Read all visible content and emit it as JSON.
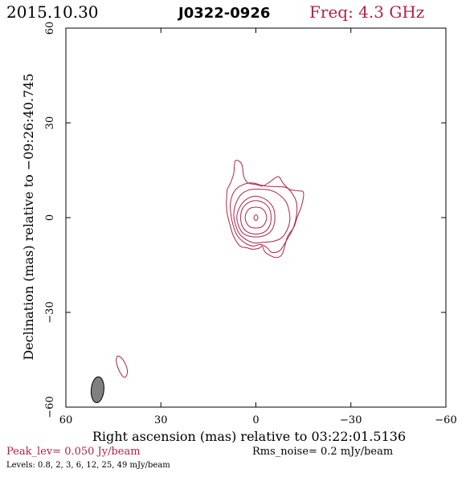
{
  "header": {
    "date": "2015.10.30",
    "source": "J0322-0926",
    "freq": "Freq: 4.3 GHz"
  },
  "footer": {
    "peak": "Peak_lev=  0.050 Jy/beam",
    "rms": "Rms_noise=  0.2 mJy/beam",
    "levels": "Levels: 0.8,   2,   3,   6,   12,   25,   49 mJy/beam"
  },
  "colors": {
    "contour": "#b0224a",
    "axis": "#000000",
    "beam_fill": "#808080",
    "peak_text": "#b0224a",
    "freq_text": "#b0224a"
  },
  "chart_data": {
    "type": "contour",
    "xlabel": "Right ascension (mas) relative to 03:22:01.5136",
    "ylabel": "Declination (mas) relative to −09:26:40.745",
    "xlim": [
      60,
      -60
    ],
    "ylim": [
      -60,
      60
    ],
    "x_ticks": [
      {
        "value": 60,
        "label": "60"
      },
      {
        "value": 30,
        "label": "30"
      },
      {
        "value": 0,
        "label": "0"
      },
      {
        "value": -30,
        "label": "−30"
      },
      {
        "value": -60,
        "label": "−60"
      }
    ],
    "y_ticks": [
      {
        "value": -60,
        "label": "−60"
      },
      {
        "value": -30,
        "label": "−30"
      },
      {
        "value": 0,
        "label": "0"
      },
      {
        "value": 30,
        "label": "30"
      },
      {
        "value": 60,
        "label": "60"
      }
    ],
    "levels_mJy_per_beam": [
      0.8,
      2,
      3,
      6,
      12,
      25,
      49
    ],
    "contours": [
      {
        "level": 0.8,
        "points": [
          [
            6.5,
            18
          ],
          [
            4.5,
            17
          ],
          [
            3.8,
            13
          ],
          [
            2.5,
            11
          ],
          [
            0,
            10.5
          ],
          [
            -2,
            10
          ],
          [
            -4,
            11
          ],
          [
            -7,
            13
          ],
          [
            -8.5,
            11
          ],
          [
            -10.5,
            9
          ],
          [
            -13,
            8.5
          ],
          [
            -15,
            8
          ],
          [
            -14.5,
            4
          ],
          [
            -13,
            0
          ],
          [
            -12,
            -3
          ],
          [
            -10,
            -6
          ],
          [
            -9,
            -9.5
          ],
          [
            -8,
            -12
          ],
          [
            -6,
            -12.6
          ],
          [
            -3,
            -11
          ],
          [
            -2,
            -9
          ],
          [
            -1,
            -9.7
          ],
          [
            1,
            -10
          ],
          [
            3,
            -9.5
          ],
          [
            5,
            -9
          ],
          [
            7,
            -6
          ],
          [
            8,
            -3
          ],
          [
            9,
            1
          ],
          [
            9.3,
            4
          ],
          [
            9.2,
            7
          ],
          [
            9,
            9
          ],
          [
            8,
            11
          ],
          [
            7,
            14
          ]
        ]
      },
      {
        "level": 2,
        "points": [
          [
            1.5,
            11
          ],
          [
            -3,
            10
          ],
          [
            -7,
            9.8
          ],
          [
            -10,
            9.3
          ],
          [
            -12.4,
            6
          ],
          [
            -13,
            3
          ],
          [
            -12.5,
            -1
          ],
          [
            -11.5,
            -4
          ],
          [
            -9.5,
            -7.5
          ],
          [
            -7.5,
            -10.5
          ],
          [
            -5,
            -11
          ],
          [
            -3.5,
            -9.5
          ],
          [
            -1.5,
            -8.5
          ],
          [
            1,
            -9
          ],
          [
            3.5,
            -8
          ],
          [
            6,
            -5.5
          ],
          [
            7.3,
            -2
          ],
          [
            8,
            2
          ],
          [
            8,
            5
          ],
          [
            7,
            8
          ],
          [
            5,
            10
          ]
        ]
      },
      {
        "level": 3,
        "points": [
          [
            0,
            9
          ],
          [
            -4,
            8.8
          ],
          [
            -7,
            7.5
          ],
          [
            -9.5,
            5
          ],
          [
            -10.5,
            2
          ],
          [
            -10.7,
            -1
          ],
          [
            -9.8,
            -4
          ],
          [
            -8,
            -6.5
          ],
          [
            -5.5,
            -7.5
          ],
          [
            -2.5,
            -7.8
          ],
          [
            0.5,
            -8
          ],
          [
            3,
            -7
          ],
          [
            5.3,
            -5
          ],
          [
            6.5,
            -2
          ],
          [
            7,
            1
          ],
          [
            6.3,
            4.5
          ],
          [
            4.5,
            7.5
          ],
          [
            2,
            8.8
          ]
        ]
      },
      {
        "level": 6,
        "points": [
          [
            0,
            6.8
          ],
          [
            3,
            5.8
          ],
          [
            5,
            3.5
          ],
          [
            6,
            0.5
          ],
          [
            5.5,
            -2.5
          ],
          [
            4,
            -5
          ],
          [
            1.5,
            -6
          ],
          [
            -1.5,
            -6
          ],
          [
            -4,
            -5
          ],
          [
            -5.5,
            -3
          ],
          [
            -6,
            0
          ],
          [
            -5.5,
            3
          ],
          [
            -3.5,
            5.5
          ]
        ]
      },
      {
        "level": 12,
        "points": [
          [
            0,
            5.4
          ],
          [
            2.6,
            4.6
          ],
          [
            4.3,
            2.7
          ],
          [
            4.8,
            0
          ],
          [
            4.3,
            -2.7
          ],
          [
            2.6,
            -4.6
          ],
          [
            0,
            -5.2
          ],
          [
            -2.6,
            -4.6
          ],
          [
            -4.3,
            -2.7
          ],
          [
            -4.8,
            0
          ],
          [
            -4.3,
            2.7
          ],
          [
            -2.6,
            4.6
          ]
        ]
      },
      {
        "level": 25,
        "points": [
          [
            0,
            3.3
          ],
          [
            1.9,
            2.9
          ],
          [
            3,
            1.6
          ],
          [
            3.4,
            0
          ],
          [
            3,
            -1.6
          ],
          [
            1.9,
            -2.9
          ],
          [
            0,
            -3.3
          ],
          [
            -1.9,
            -2.9
          ],
          [
            -3,
            -1.6
          ],
          [
            -3.4,
            0
          ],
          [
            -3,
            1.6
          ],
          [
            -1.9,
            2.9
          ]
        ]
      },
      {
        "level": 49,
        "points": [
          [
            0,
            0.9
          ],
          [
            0.55,
            0.4
          ],
          [
            0.55,
            -0.4
          ],
          [
            0,
            -0.9
          ],
          [
            -0.55,
            -0.4
          ],
          [
            -0.55,
            0.4
          ]
        ]
      },
      {
        "level": 0.8,
        "points": [
          [
            43.6,
            -43.8
          ],
          [
            43.9,
            -44.2
          ],
          [
            44.1,
            -45.2
          ],
          [
            43.8,
            -46.8
          ],
          [
            42.9,
            -49
          ],
          [
            41.7,
            -50.5
          ],
          [
            40.9,
            -50.1
          ],
          [
            40.6,
            -48.3
          ],
          [
            41.3,
            -46.2
          ],
          [
            42.4,
            -44.5
          ]
        ]
      }
    ],
    "beam": {
      "x": 50,
      "y": -54.5,
      "major": 8.2,
      "minor": 4.0,
      "pa_deg": 5
    },
    "grid": false,
    "legend": "none"
  }
}
